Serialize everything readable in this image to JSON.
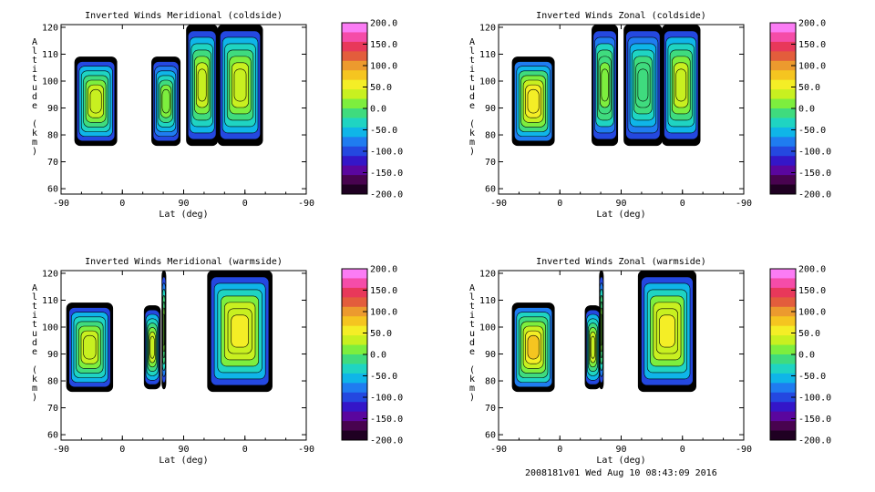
{
  "footer": "2008181v01 Wed Aug 10 08:43:09 2016",
  "axes": {
    "xlabel": "Lat (deg)",
    "ylabel": "Altitude (km)",
    "x_ticks": [
      "-90",
      "0",
      "90",
      "0",
      "-90"
    ],
    "y_ticks": [
      "60",
      "70",
      "80",
      "90",
      "100",
      "110",
      "120"
    ],
    "ylim": [
      58,
      121
    ]
  },
  "colorbar": {
    "ticks": [
      "200.0",
      "150.0",
      "100.0",
      "50.0",
      "0.0",
      "-50.0",
      "-100.0",
      "-150.0",
      "-200.0"
    ],
    "colors": [
      "#fb7cf4",
      "#f54ca8",
      "#e8385a",
      "#e35d3c",
      "#ec9a2e",
      "#f5c520",
      "#f4ee26",
      "#c8f020",
      "#7dee3e",
      "#3fdb7e",
      "#1fd4c2",
      "#0fb5e8",
      "#1f7cf0",
      "#2448e0",
      "#3416c8",
      "#5a069e",
      "#48034f",
      "#1f0022"
    ]
  },
  "chart_data": [
    {
      "type": "heatmap",
      "title": "Inverted Winds Meridional (coldside)",
      "xlabel": "Lat (deg)",
      "ylabel": "Altitude (km)",
      "x_tick_labels": [
        "-90",
        "0",
        "90",
        "0",
        "-90"
      ],
      "ylim": [
        58,
        121
      ],
      "colorbar_range": [
        -200,
        200
      ],
      "regions": [
        {
          "x": [
            -70,
            -8
          ],
          "y": [
            76,
            109
          ],
          "peak": 30
        },
        {
          "x": [
            43,
            85
          ],
          "y": [
            76,
            109
          ],
          "peak": 10
        },
        {
          "x": [
            94,
            140
          ],
          "y": [
            76,
            121
          ],
          "peak": 30
        },
        {
          "x": [
            140,
            206
          ],
          "y": [
            76,
            121
          ],
          "peak": 40
        }
      ]
    },
    {
      "type": "heatmap",
      "title": "Inverted Winds Zonal (coldside)",
      "xlabel": "Lat (deg)",
      "ylabel": "Altitude (km)",
      "x_tick_labels": [
        "-90",
        "0",
        "90",
        "0",
        "-90"
      ],
      "ylim": [
        58,
        121
      ],
      "colorbar_range": [
        -200,
        200
      ],
      "regions": [
        {
          "x": [
            -70,
            -8
          ],
          "y": [
            76,
            109
          ],
          "peak": 60
        },
        {
          "x": [
            47,
            85
          ],
          "y": [
            76,
            121
          ],
          "peak": 20
        },
        {
          "x": [
            94,
            150
          ],
          "y": [
            76,
            121
          ],
          "peak": 0
        },
        {
          "x": [
            150,
            206
          ],
          "y": [
            76,
            121
          ],
          "peak": 40
        }
      ]
    },
    {
      "type": "heatmap",
      "title": "Inverted Winds Meridional (warmside)",
      "xlabel": "Lat (deg)",
      "ylabel": "Altitude (km)",
      "x_tick_labels": [
        "-90",
        "0",
        "90",
        "0",
        "-90"
      ],
      "ylim": [
        58,
        121
      ],
      "colorbar_range": [
        -200,
        200
      ],
      "regions": [
        {
          "x": [
            -82,
            -14
          ],
          "y": [
            76,
            109
          ],
          "peak": 40
        },
        {
          "x": [
            32,
            56
          ],
          "y": [
            77,
            108
          ],
          "peak": 30
        },
        {
          "x": [
            58,
            64
          ],
          "y": [
            77,
            121
          ],
          "peak": 20
        },
        {
          "x": [
            125,
            220
          ],
          "y": [
            76,
            121
          ],
          "peak": 50
        }
      ]
    },
    {
      "type": "heatmap",
      "title": "Inverted Winds Zonal (warmside)",
      "xlabel": "Lat (deg)",
      "ylabel": "Altitude (km)",
      "x_tick_labels": [
        "-90",
        "0",
        "90",
        "0",
        "-90"
      ],
      "ylim": [
        58,
        121
      ],
      "colorbar_range": [
        -200,
        200
      ],
      "regions": [
        {
          "x": [
            -70,
            -8
          ],
          "y": [
            76,
            109
          ],
          "peak": 70
        },
        {
          "x": [
            37,
            60
          ],
          "y": [
            77,
            108
          ],
          "peak": 30
        },
        {
          "x": [
            58,
            64
          ],
          "y": [
            77,
            121
          ],
          "peak": 20
        },
        {
          "x": [
            115,
            200
          ],
          "y": [
            76,
            121
          ],
          "peak": 50
        }
      ]
    }
  ]
}
